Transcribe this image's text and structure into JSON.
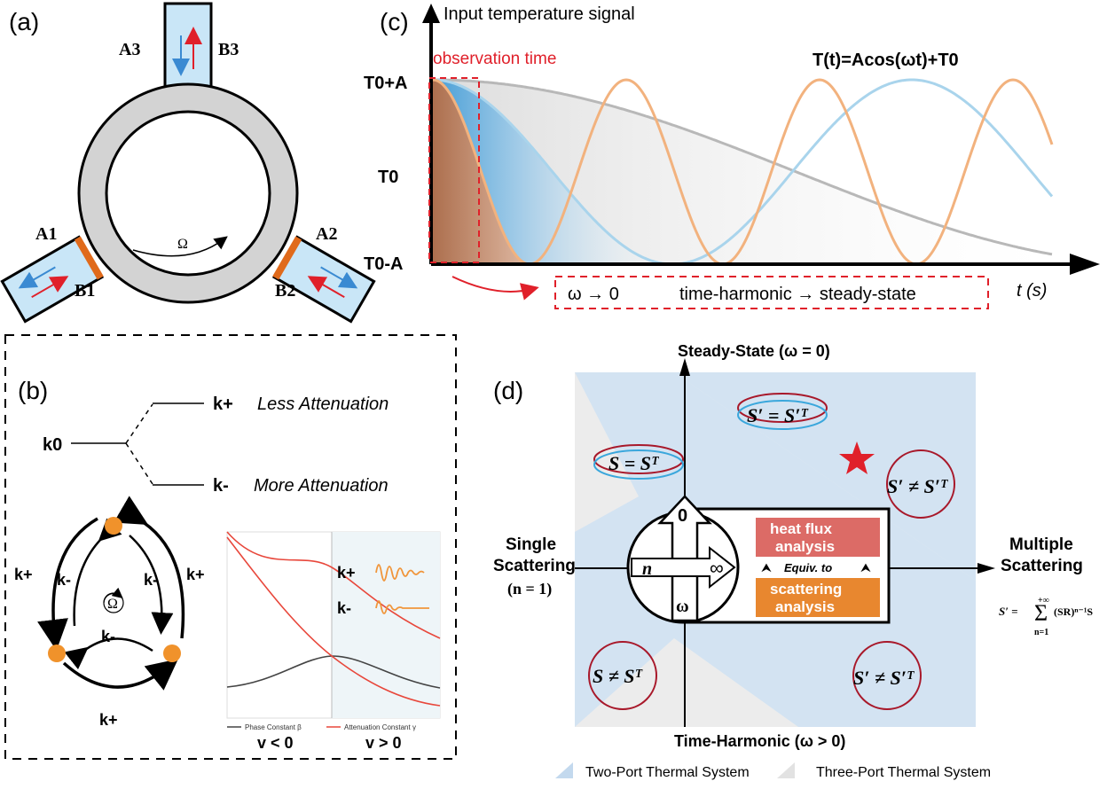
{
  "panel_a": {
    "label": "(a)",
    "ports": [
      "A1",
      "B1",
      "A2",
      "B2",
      "A3",
      "B3"
    ],
    "omega": "Ω"
  },
  "panel_b": {
    "label": "(b)",
    "split": {
      "k0": "k0",
      "kplus": "k+",
      "kminus": "k-",
      "less": "Less Attenuation",
      "more": "More Attenuation"
    },
    "loop": {
      "kplus": "k+",
      "kminus": "k-",
      "omega": "Ω"
    },
    "plot": {
      "legend_beta": "Phase Constant β",
      "legend_gamma": "Attenuation Constant γ",
      "kplus": "k+",
      "kminus": "k-",
      "v_neg": "v < 0",
      "v_pos": "v > 0",
      "colors": {
        "beta": "#444444",
        "gamma": "#e8473b",
        "shade": "#eef5f8",
        "wave": "#f0953a"
      }
    }
  },
  "panel_c": {
    "label": "(c)",
    "title": "Input temperature signal",
    "formula": "T(t)=Acos(ωt)+T0",
    "observation": "observation time",
    "ytick_top": "T0+A",
    "ytick_mid": "T0",
    "ytick_bot": "T0-A",
    "xlabel": "t (s)",
    "limit": {
      "omega": "ω → 0",
      "text": "time-harmonic → steady-state"
    },
    "colors": {
      "fast": "#f2b27e",
      "slow": "#a9d4ec",
      "gray": "#b8b8b8",
      "red": "#e0202a"
    }
  },
  "panel_d": {
    "label": "(d)",
    "top": "Steady-State (ω = 0)",
    "bottom": "Time-Harmonic (ω > 0)",
    "left_1": "Single",
    "left_2": "Scattering",
    "left_3": "(n = 1)",
    "right_1": "Multiple",
    "right_2": "Scattering",
    "q_s_eq": "S = Sᵀ",
    "q_sp_eq": "S′ = S′ᵀ",
    "q_sp_neq": "S′ ≠ S′ᵀ",
    "q_s_neq": "S ≠ Sᵀ",
    "q_sp_neq_2": "S′ ≠ S′ᵀ",
    "box_heat": "heat flux",
    "box_heat_2": "analysis",
    "box_equiv": "Equiv. to",
    "box_scat": "scattering",
    "box_scat_2": "analysis",
    "center_n": "n",
    "center_inf": "∞",
    "center_zero": "0",
    "center_omega": "ω",
    "sum_lhs": "S′ =",
    "sum_top": "+∞",
    "sum_body": "(SR)ⁿ⁻¹S",
    "sum_bot": "n=1",
    "legend_two": "Two-Port Thermal System",
    "legend_three": "Three-Port Thermal System",
    "colors": {
      "heat": "#dc6b66",
      "scat": "#e8872f",
      "blue_region": "#d3e3f2",
      "gray_region": "#ececec"
    }
  }
}
